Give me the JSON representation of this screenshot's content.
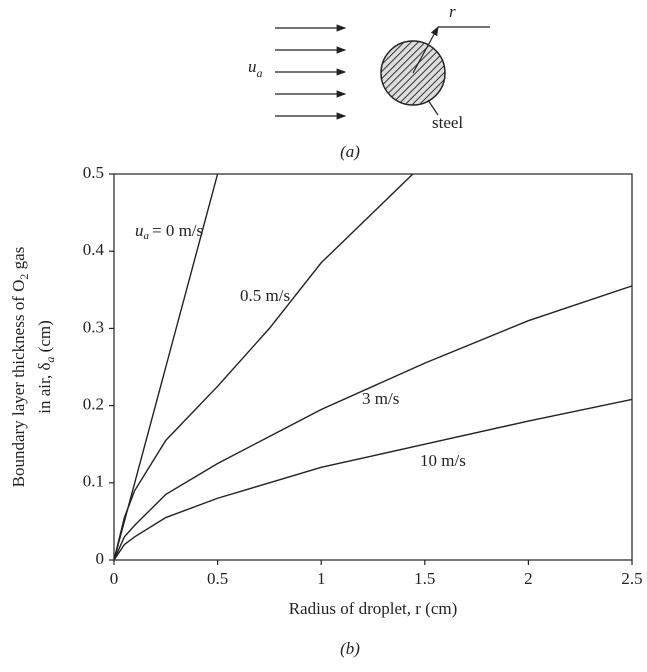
{
  "diagram": {
    "velocity_symbol": "u",
    "velocity_subscript": "a",
    "radius_label": "r",
    "material_label": "steel",
    "caption": "(a)"
  },
  "chart_data": {
    "type": "line",
    "caption": "(b)",
    "x_label": "Radius of droplet, r (cm)",
    "y_label": [
      [
        "Boundary layer thickness of O",
        "2",
        " gas"
      ],
      [
        "in air, δ",
        "a",
        " (cm)"
      ]
    ],
    "label_prefix": [
      "u",
      "a"
    ],
    "x": [
      0,
      0.05,
      0.1,
      0.25,
      0.5,
      0.75,
      1,
      1.25,
      1.5,
      2,
      2.5
    ],
    "series": [
      {
        "name": "= 0 m/s",
        "color": "#222222",
        "values": [
          0,
          0.05,
          0.1,
          0.25,
          0.5,
          null,
          null,
          null,
          null,
          null,
          null
        ]
      },
      {
        "name": "0.5 m/s",
        "color": "#222222",
        "values": [
          0,
          0.055,
          0.09,
          0.155,
          0.225,
          0.3,
          0.385,
          0.45,
          0.515,
          null,
          null
        ]
      },
      {
        "name": "3 m/s",
        "color": "#222222",
        "values": [
          0,
          0.03,
          0.045,
          0.085,
          0.125,
          0.16,
          0.195,
          0.225,
          0.255,
          0.31,
          0.355
        ]
      },
      {
        "name": "10 m/s",
        "color": "#222222",
        "values": [
          0,
          0.02,
          0.03,
          0.055,
          0.08,
          0.1,
          0.12,
          0.135,
          0.15,
          0.18,
          0.208
        ]
      }
    ],
    "xlim": [
      0,
      2.5
    ],
    "xticks": [
      0,
      0.5,
      1,
      1.5,
      2,
      2.5
    ],
    "ylim": [
      0,
      0.5
    ],
    "yticks": [
      0,
      0.1,
      0.2,
      0.3,
      0.4,
      0.5
    ]
  }
}
